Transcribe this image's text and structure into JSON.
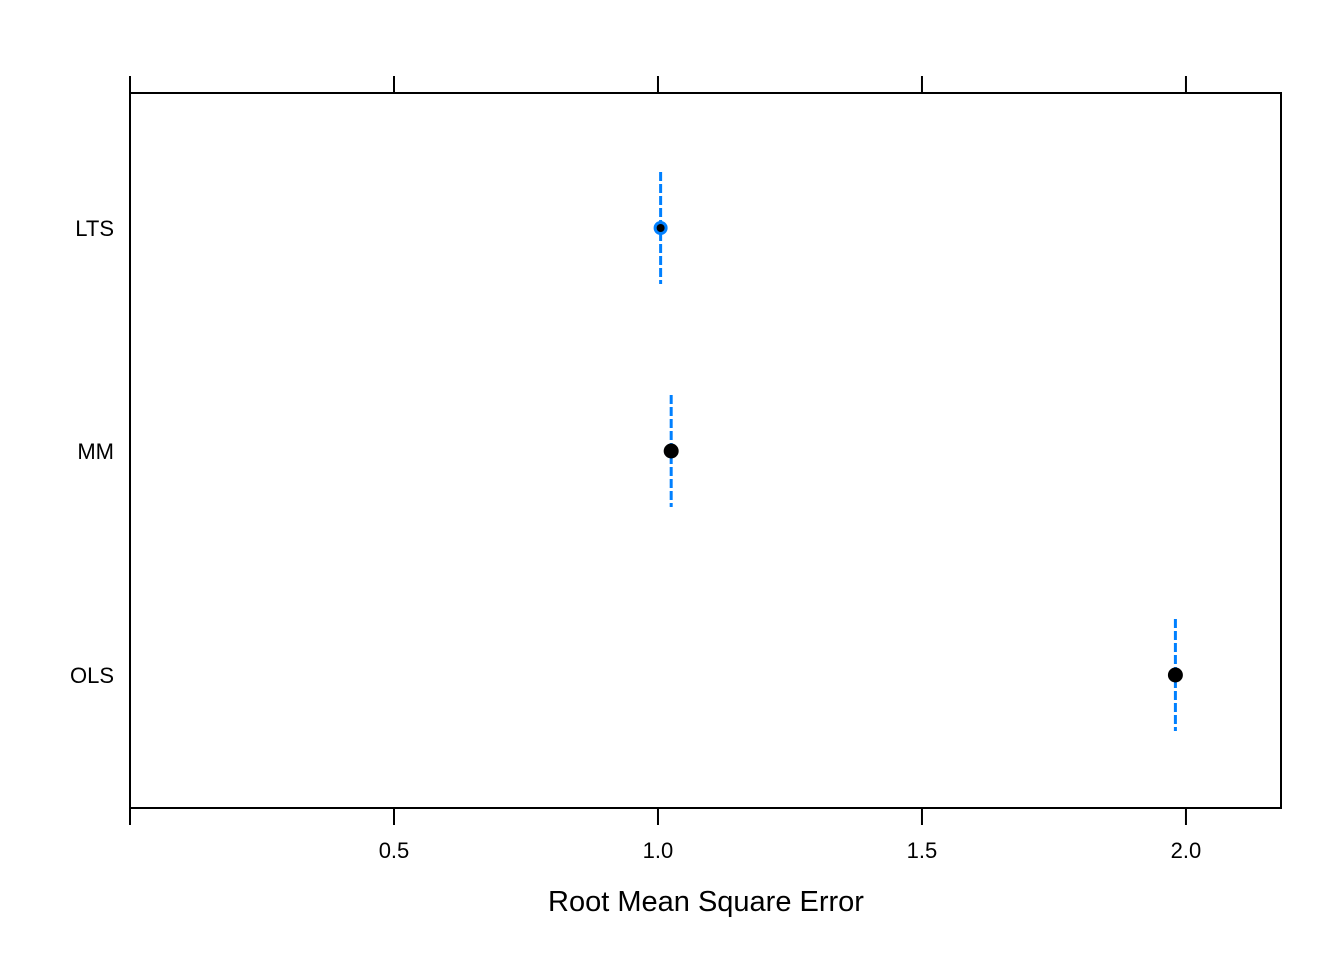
{
  "chart_data": {
    "type": "dotplot",
    "title": "",
    "xlabel": "Root Mean Square Error",
    "ylabel": "",
    "xlim": [
      0.0,
      2.18
    ],
    "x_ticks": [
      0.5,
      1.0,
      1.5,
      2.0
    ],
    "x_tick_labels": [
      "0.5",
      "1.0",
      "1.5",
      "2.0"
    ],
    "grid": false,
    "legend": "none",
    "categories": [
      "LTS",
      "MM",
      "OLS"
    ],
    "estimates": [
      1.005,
      1.025,
      1.98
    ],
    "interval_lower": [
      1.005,
      1.025,
      1.98
    ],
    "interval_upper": [
      1.005,
      1.025,
      1.98
    ],
    "colors": {
      "point": "#000000",
      "interval": "#0080ff",
      "highlight_ring": "#0080ff",
      "axis": "#000000"
    }
  }
}
